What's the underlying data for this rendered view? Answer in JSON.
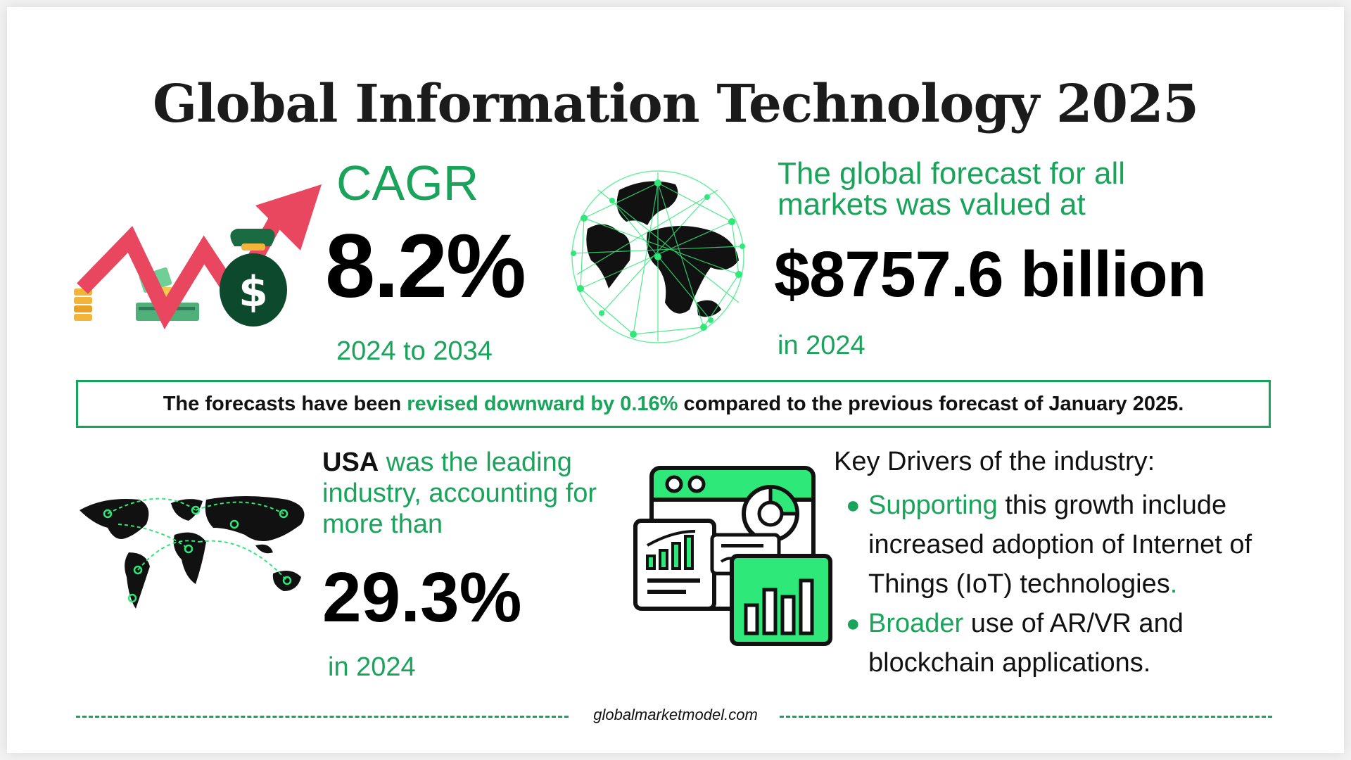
{
  "title": "Global Information Technology 2025",
  "cagr": {
    "label": "CAGR",
    "value": "8.2%",
    "range": "2024 to 2034"
  },
  "forecast": {
    "label": "The global forecast for all markets was valued at",
    "value": "$8757.6 billion",
    "year": "in 2024"
  },
  "banner": {
    "prefix": "The forecasts have been",
    "highlight": "revised downward by 0.16%",
    "suffix": "compared to the previous forecast of January 2025."
  },
  "usa": {
    "country": "USA",
    "text": "was the leading industry, accounting for more than",
    "value": "29.3%",
    "year": "in 2024"
  },
  "drivers": {
    "title": "Key Drivers of the industry:",
    "items": [
      {
        "highlight": "Supporting",
        "text": "this growth include increased adoption of Internet of Things (IoT) technologies",
        "tail": "."
      },
      {
        "highlight": "Broader",
        "text": "use of AR/VR and blockchain applications.",
        "tail": ""
      }
    ]
  },
  "footer": {
    "site": "globalmarketmodel.com"
  },
  "colors": {
    "accent": "#1aa35a",
    "bright_green": "#2ee879",
    "arrow_red": "#e8475f",
    "money_bag": "#0d4a2d"
  },
  "icons": [
    "rising-arrow-icon",
    "money-bag-icon",
    "globe-network-icon",
    "world-map-icon",
    "dashboard-analytics-icon"
  ]
}
